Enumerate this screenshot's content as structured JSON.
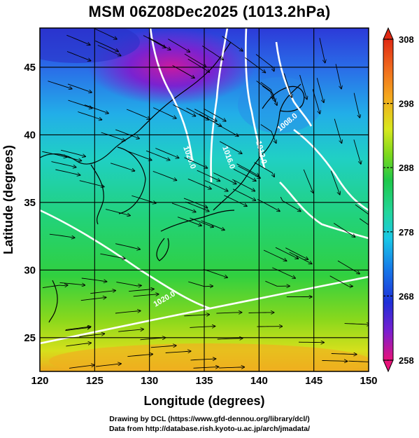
{
  "title": "MSM 06Z08Dec2025 (1013.2hPa)",
  "map": {
    "x_axis": {
      "label": "Longitude (degrees)",
      "min": 120,
      "max": 150,
      "ticks": [
        "120",
        "125",
        "130",
        "135",
        "140",
        "145",
        "150"
      ]
    },
    "y_axis": {
      "label": "Latitude  (degrees)",
      "min": 22.5,
      "max": 47.9,
      "ticks": [
        "25",
        "30",
        "35",
        "40",
        "45"
      ]
    },
    "contour_labels": [
      "1020.0",
      "1016.0",
      "1012.0",
      "1008.0",
      "1020.0"
    ],
    "colorbar": {
      "min": 258,
      "max": 308,
      "ticks": [
        "308",
        "298",
        "288",
        "278",
        "268",
        "258"
      ],
      "colors": [
        "#e8127a",
        "#7a1fd0",
        "#1f2fd8",
        "#1676e8",
        "#19c8e6",
        "#22d69c",
        "#1ec84a",
        "#7cd81c",
        "#d8e81e",
        "#f4a81e",
        "#f06a1e",
        "#e02a14"
      ]
    }
  },
  "credits": {
    "line1": "Drawing by DCL (https://www.gfd-dennou.org/library/dcl/)",
    "line2": "Data from http://database.rish.kyoto-u.ac.jp/arch/jmadata/"
  }
}
